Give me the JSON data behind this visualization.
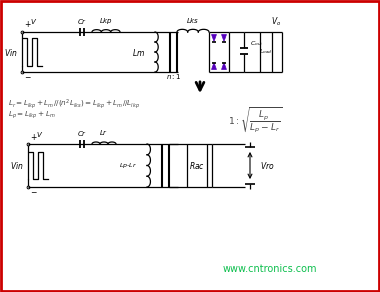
{
  "bg_color": "#ffffff",
  "border_color": "#cc0000",
  "border_width": 2,
  "watermark": "www.cntronics.com",
  "watermark_color": "#00bb44",
  "watermark_fontsize": 7,
  "diode_color": "#5500bb",
  "line_color": "#000000",
  "text_color": "#000000",
  "formula_color": "#444444"
}
